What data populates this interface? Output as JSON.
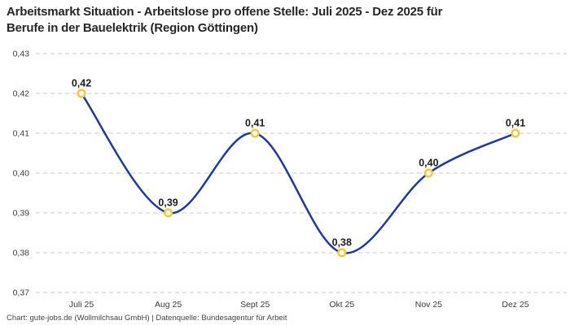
{
  "header": {
    "title_line1": "Arbeitsmarkt Situation - Arbeitslose pro offene Stelle: Juli 2025 - Dez 2025 für",
    "title_line2": "Berufe in der Bauelektrik (Region Göttingen)"
  },
  "footer": {
    "credit": "Chart: gute-jobs.de (Wollmilchsau GmbH) | Datenquelle: Bundesagentur für Arbeit"
  },
  "colors": {
    "line": "#1e3a9c",
    "marker_stroke": "#fdc330",
    "marker_fill": "#ffffff",
    "grid": "#cbcbcb",
    "tick_text": "#3c3c3c",
    "point_label_text": "#1d1d1d"
  },
  "chart_data": {
    "type": "line",
    "title": "Arbeitsmarkt Situation - Arbeitslose pro offene Stelle: Juli 2025 - Dez 2025 für Berufe in der Bauelektrik (Region Göttingen)",
    "categories": [
      "Juli 25",
      "Aug 25",
      "Sept 25",
      "Okt 25",
      "Nov 25",
      "Dez 25"
    ],
    "values": [
      0.42,
      0.39,
      0.41,
      0.38,
      0.4,
      0.41
    ],
    "point_labels": [
      "0,42",
      "0,39",
      "0,41",
      "0,38",
      "0,40",
      "0,41"
    ],
    "ylim": [
      0.37,
      0.43
    ],
    "yticks": [
      0.43,
      0.42,
      0.41,
      0.4,
      0.39,
      0.38,
      0.37
    ],
    "ytick_labels": [
      "0,43",
      "0,42",
      "0,41",
      "0,40",
      "0,39",
      "0,38",
      "0,37"
    ],
    "xlabel": "",
    "ylabel": "",
    "grid": "horizontal-dashed",
    "legend_position": "none",
    "line_style": "smooth-spline",
    "marker_style": "open-circle"
  }
}
